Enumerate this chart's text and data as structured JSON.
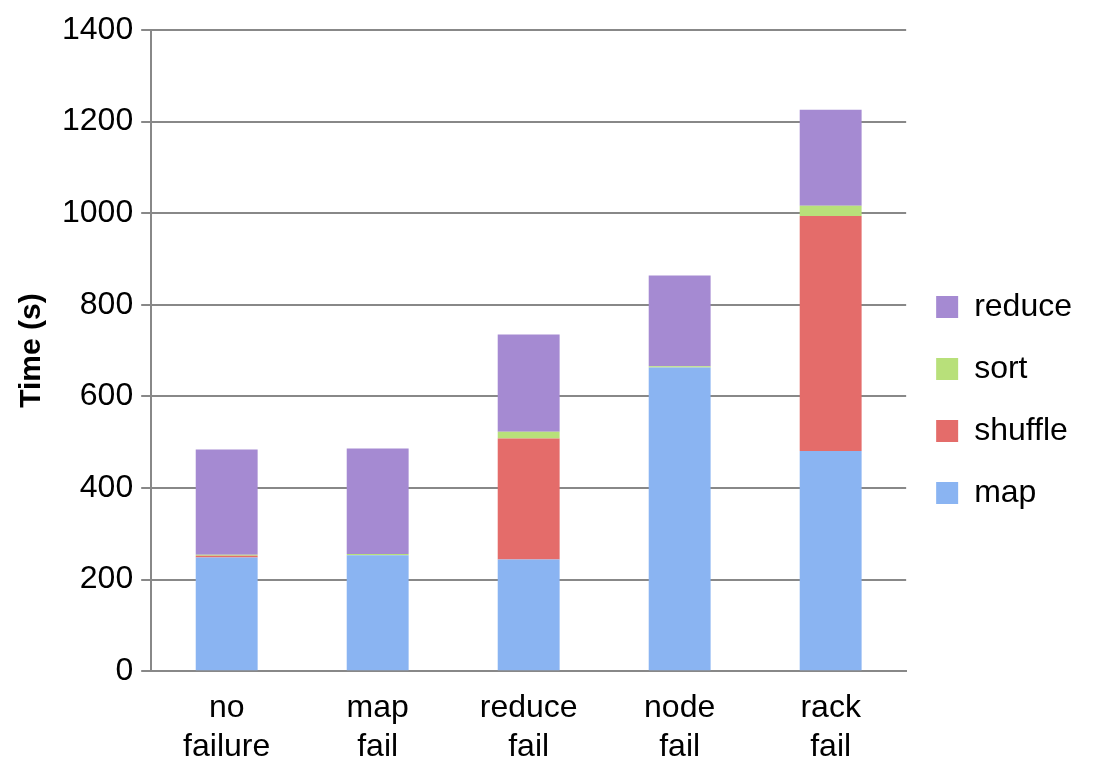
{
  "chart_data": {
    "type": "bar",
    "stacked": true,
    "ylabel": "Time (s)",
    "categories": [
      "no failure",
      "map fail",
      "reduce fail",
      "node fail",
      "rack fail"
    ],
    "series": [
      {
        "name": "map",
        "color": "#8ab4f2",
        "values": [
          248,
          253,
          244,
          663,
          481
        ]
      },
      {
        "name": "shuffle",
        "color": "#e46c6a",
        "values": [
          4,
          0,
          264,
          0,
          513
        ]
      },
      {
        "name": "sort",
        "color": "#b8e07a",
        "values": [
          2,
          3,
          15,
          3,
          22
        ]
      },
      {
        "name": "reduce",
        "color": "#a58ad2",
        "values": [
          230,
          230,
          212,
          198,
          210
        ]
      }
    ],
    "ylim": [
      0,
      1400
    ],
    "yticks": [
      0,
      200,
      400,
      600,
      800,
      1000,
      1200,
      1400
    ],
    "grid": "y",
    "legend": "right"
  }
}
